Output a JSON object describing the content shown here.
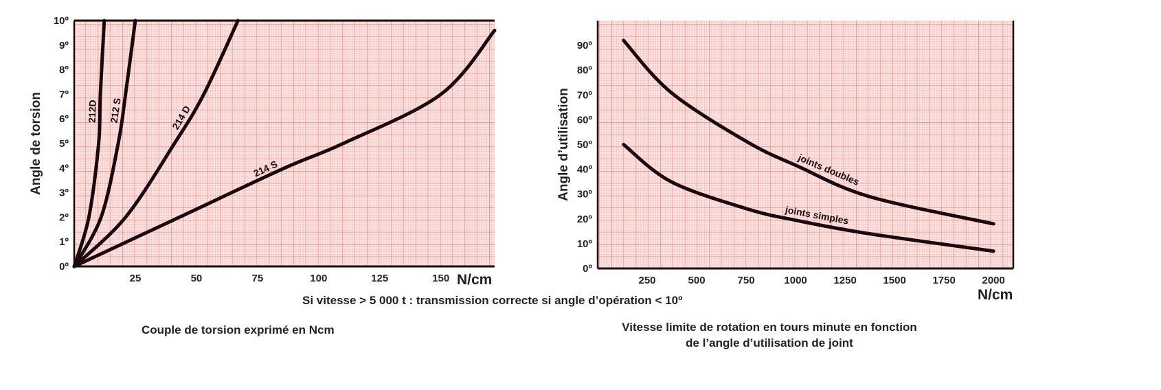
{
  "note": "Si vitesse > 5 000 t : transmission correcte si angle d’opération < 10º",
  "colors": {
    "grid_minor": "#f3b7b0",
    "grid_mid": "#ec8f84",
    "grid_major": "#e46a5c",
    "paper": "#fde6e4",
    "curve": "#1a0a10"
  },
  "chart_data": [
    {
      "type": "line",
      "caption": "Couple de torsion exprimé en Ncm",
      "xlabel": "N/cm",
      "ylabel": "Angle de torsion",
      "xlim": [
        0,
        172
      ],
      "ylim": [
        0,
        10
      ],
      "grid": true,
      "xticks": [
        {
          "v": 25,
          "label": "25"
        },
        {
          "v": 50,
          "label": "50"
        },
        {
          "v": 75,
          "label": "75"
        },
        {
          "v": 100,
          "label": "100"
        },
        {
          "v": 125,
          "label": "125"
        },
        {
          "v": 150,
          "label": "150"
        }
      ],
      "yticks": [
        {
          "v": 0,
          "label": "0º"
        },
        {
          "v": 1,
          "label": "1º"
        },
        {
          "v": 2,
          "label": "2º"
        },
        {
          "v": 3,
          "label": "3º"
        },
        {
          "v": 4,
          "label": "4º"
        },
        {
          "v": 5,
          "label": "5º"
        },
        {
          "v": 6,
          "label": "6º"
        },
        {
          "v": 7,
          "label": "7º"
        },
        {
          "v": 8,
          "label": "8º"
        },
        {
          "v": 9,
          "label": "9º"
        },
        {
          "v": 10,
          "label": "10º"
        }
      ],
      "series": [
        {
          "name": "212D",
          "x": [
            0,
            6,
            10,
            10.7,
            12.3
          ],
          "y": [
            0,
            2,
            5,
            7,
            10
          ],
          "label_at": 6.3
        },
        {
          "name": "212 S",
          "x": [
            0,
            11,
            18,
            21,
            25
          ],
          "y": [
            0,
            2,
            5,
            7,
            10
          ],
          "label_at": 6.3
        },
        {
          "name": "214 D",
          "x": [
            0,
            21,
            41,
            53,
            67
          ],
          "y": [
            0,
            2,
            5,
            7,
            10
          ],
          "label_at": 5.9
        },
        {
          "name": "214 S",
          "x": [
            0,
            43,
            86,
            110,
            150,
            172
          ],
          "y": [
            0,
            2,
            4,
            5,
            7,
            9.6
          ],
          "label_at": 3.7
        }
      ]
    },
    {
      "type": "line",
      "caption": [
        "Vitesse limite de rotation en tours minute en fonction",
        "de l’angle d’utilisation de joint"
      ],
      "xlabel": "N/cm",
      "ylabel": "Angle d’utilisation",
      "xlim": [
        0,
        2100
      ],
      "ylim": [
        0,
        100
      ],
      "grid": true,
      "xticks": [
        {
          "v": 250,
          "label": "250"
        },
        {
          "v": 500,
          "label": "500"
        },
        {
          "v": 750,
          "label": "750"
        },
        {
          "v": 1000,
          "label": "1000"
        },
        {
          "v": 1250,
          "label": "1250"
        },
        {
          "v": 1500,
          "label": "1500"
        },
        {
          "v": 1750,
          "label": "1750"
        },
        {
          "v": 2000,
          "label": "2000"
        }
      ],
      "yticks": [
        {
          "v": 0,
          "label": "0º"
        },
        {
          "v": 10,
          "label": "10º"
        },
        {
          "v": 20,
          "label": "20º"
        },
        {
          "v": 30,
          "label": "30º"
        },
        {
          "v": 40,
          "label": "40º"
        },
        {
          "v": 50,
          "label": "50º"
        },
        {
          "v": 60,
          "label": "60º"
        },
        {
          "v": 70,
          "label": "70º"
        },
        {
          "v": 80,
          "label": "80º"
        },
        {
          "v": 90,
          "label": "90º"
        }
      ],
      "series": [
        {
          "name": "joints doubles",
          "x": [
            131,
            371,
            757,
            1010,
            1373,
            2000
          ],
          "y": [
            92,
            71,
            51,
            41.3,
            29,
            18
          ],
          "label_at": 1150
        },
        {
          "name": "joints simples",
          "x": [
            131,
            371,
            757,
            1010,
            1373,
            2000
          ],
          "y": [
            50,
            35,
            24,
            19.3,
            14,
            7
          ],
          "label_at": 1100
        }
      ]
    }
  ]
}
